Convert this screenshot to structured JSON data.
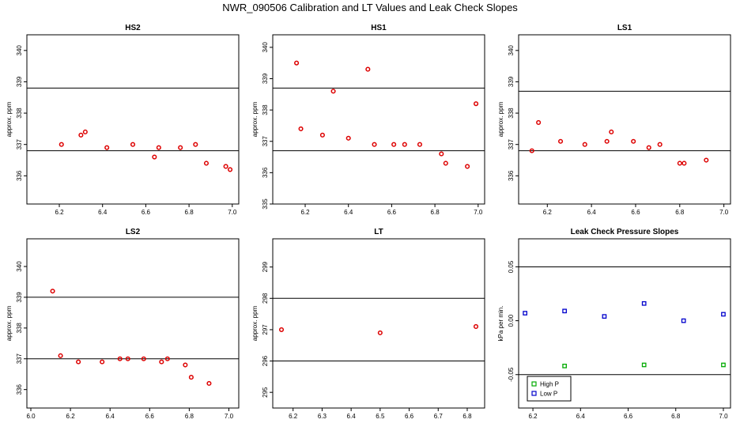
{
  "figure": {
    "title": "NWR_090506  Calibration and LT Values and Leak Check Slopes"
  },
  "chart_data": [
    {
      "type": "scatter",
      "title": "HS2",
      "ylabel": "approx. ppm",
      "xlim": [
        6.05,
        7.03
      ],
      "ylim": [
        335.1,
        340.5
      ],
      "xticks": [
        6.2,
        6.4,
        6.6,
        6.8,
        7.0
      ],
      "xtick_labels": [
        "6.2",
        "6.4",
        "6.6",
        "6.8",
        "7.0"
      ],
      "yticks": [
        336,
        337,
        338,
        339,
        340
      ],
      "ytick_labels": [
        "336",
        "337",
        "338",
        "339",
        "340"
      ],
      "hlines": [
        338.8,
        336.8
      ],
      "series": [
        {
          "color": "#dd0000",
          "marker": "circle",
          "points": [
            [
              6.21,
              337.0
            ],
            [
              6.3,
              337.3
            ],
            [
              6.32,
              337.4
            ],
            [
              6.42,
              336.9
            ],
            [
              6.54,
              337.0
            ],
            [
              6.64,
              336.6
            ],
            [
              6.66,
              336.9
            ],
            [
              6.76,
              336.9
            ],
            [
              6.83,
              337.0
            ],
            [
              6.88,
              336.4
            ],
            [
              6.97,
              336.3
            ],
            [
              6.99,
              336.2
            ]
          ]
        }
      ]
    },
    {
      "type": "scatter",
      "title": "HS1",
      "ylabel": "approx. ppm",
      "xlim": [
        6.05,
        7.03
      ],
      "ylim": [
        335.0,
        340.4
      ],
      "xticks": [
        6.2,
        6.4,
        6.6,
        6.8,
        7.0
      ],
      "xtick_labels": [
        "6.2",
        "6.4",
        "6.6",
        "6.8",
        "7.0"
      ],
      "yticks": [
        335,
        336,
        337,
        338,
        339,
        340
      ],
      "ytick_labels": [
        "335",
        "336",
        "337",
        "338",
        "339",
        "340"
      ],
      "hlines": [
        338.7,
        336.7
      ],
      "series": [
        {
          "color": "#dd0000",
          "marker": "circle",
          "points": [
            [
              6.16,
              339.5
            ],
            [
              6.18,
              337.4
            ],
            [
              6.28,
              337.2
            ],
            [
              6.33,
              338.6
            ],
            [
              6.4,
              337.1
            ],
            [
              6.49,
              339.3
            ],
            [
              6.52,
              336.9
            ],
            [
              6.61,
              336.9
            ],
            [
              6.66,
              336.9
            ],
            [
              6.73,
              336.9
            ],
            [
              6.83,
              336.6
            ],
            [
              6.85,
              336.3
            ],
            [
              6.95,
              336.2
            ],
            [
              6.99,
              338.2
            ]
          ]
        }
      ]
    },
    {
      "type": "scatter",
      "title": "LS1",
      "ylabel": "approx. ppm",
      "xlim": [
        6.07,
        7.03
      ],
      "ylim": [
        335.1,
        340.5
      ],
      "xticks": [
        6.2,
        6.4,
        6.6,
        6.8,
        7.0
      ],
      "xtick_labels": [
        "6.2",
        "6.4",
        "6.6",
        "6.8",
        "7.0"
      ],
      "yticks": [
        336,
        337,
        338,
        339,
        340
      ],
      "ytick_labels": [
        "336",
        "337",
        "338",
        "339",
        "340"
      ],
      "hlines": [
        338.7,
        336.8
      ],
      "series": [
        {
          "color": "#dd0000",
          "marker": "circle",
          "points": [
            [
              6.13,
              336.8
            ],
            [
              6.16,
              337.7
            ],
            [
              6.26,
              337.1
            ],
            [
              6.37,
              337.0
            ],
            [
              6.47,
              337.1
            ],
            [
              6.49,
              337.4
            ],
            [
              6.59,
              337.1
            ],
            [
              6.66,
              336.9
            ],
            [
              6.71,
              337.0
            ],
            [
              6.8,
              336.4
            ],
            [
              6.82,
              336.4
            ],
            [
              6.92,
              336.5
            ]
          ]
        }
      ]
    },
    {
      "type": "scatter",
      "title": "LS2",
      "ylabel": "approx. ppm",
      "xlim": [
        5.98,
        7.05
      ],
      "ylim": [
        335.4,
        340.9
      ],
      "xticks": [
        6.0,
        6.2,
        6.4,
        6.6,
        6.8,
        7.0
      ],
      "xtick_labels": [
        "6.0",
        "6.2",
        "6.4",
        "6.6",
        "6.8",
        "7.0"
      ],
      "yticks": [
        336,
        337,
        338,
        339,
        340
      ],
      "ytick_labels": [
        "336",
        "337",
        "338",
        "339",
        "340"
      ],
      "hlines": [
        339.0,
        337.0
      ],
      "series": [
        {
          "color": "#dd0000",
          "marker": "circle",
          "points": [
            [
              6.11,
              339.2
            ],
            [
              6.15,
              337.1
            ],
            [
              6.24,
              336.9
            ],
            [
              6.36,
              336.9
            ],
            [
              6.45,
              337.0
            ],
            [
              6.49,
              337.0
            ],
            [
              6.57,
              337.0
            ],
            [
              6.66,
              336.9
            ],
            [
              6.69,
              337.0
            ],
            [
              6.78,
              336.8
            ],
            [
              6.81,
              336.4
            ],
            [
              6.9,
              336.2
            ]
          ]
        }
      ]
    },
    {
      "type": "scatter",
      "title": "LT",
      "ylabel": "approx. ppm",
      "xlim": [
        6.13,
        6.86
      ],
      "ylim": [
        294.5,
        299.9
      ],
      "xticks": [
        6.2,
        6.3,
        6.4,
        6.5,
        6.6,
        6.7,
        6.8
      ],
      "xtick_labels": [
        "6.2",
        "6.3",
        "6.4",
        "6.5",
        "6.6",
        "6.7",
        "6.8"
      ],
      "yticks": [
        295,
        296,
        297,
        298,
        299
      ],
      "ytick_labels": [
        "295",
        "296",
        "297",
        "298",
        "299"
      ],
      "hlines": [
        298.0,
        296.0
      ],
      "series": [
        {
          "color": "#dd0000",
          "marker": "circle",
          "points": [
            [
              6.16,
              297.0
            ],
            [
              6.5,
              296.9
            ],
            [
              6.83,
              297.1
            ]
          ]
        }
      ]
    },
    {
      "type": "scatter",
      "title": "Leak Check Pressure Slopes",
      "ylabel": "kPa per min.",
      "xlim": [
        6.14,
        7.03
      ],
      "ylim": [
        -0.081,
        0.076
      ],
      "xticks": [
        6.2,
        6.4,
        6.6,
        6.8,
        7.0
      ],
      "xtick_labels": [
        "6.2",
        "6.4",
        "6.6",
        "6.8",
        "7.0"
      ],
      "yticks": [
        -0.05,
        0.0,
        0.05
      ],
      "ytick_labels": [
        "-0.05",
        "0.00",
        "0.05"
      ],
      "hlines": [
        0.05,
        -0.05
      ],
      "legend": {
        "position": "bottom-left"
      },
      "series": [
        {
          "name": "High P",
          "color": "#00aa00",
          "marker": "square",
          "points": [
            [
              6.333,
              -0.042
            ],
            [
              6.667,
              -0.041
            ],
            [
              7.0,
              -0.041
            ]
          ]
        },
        {
          "name": "Low P",
          "color": "#0000cc",
          "marker": "square",
          "points": [
            [
              6.167,
              0.007
            ],
            [
              6.333,
              0.009
            ],
            [
              6.5,
              0.004
            ],
            [
              6.667,
              0.016
            ],
            [
              6.833,
              0.0
            ],
            [
              7.0,
              0.006
            ]
          ]
        }
      ]
    }
  ]
}
